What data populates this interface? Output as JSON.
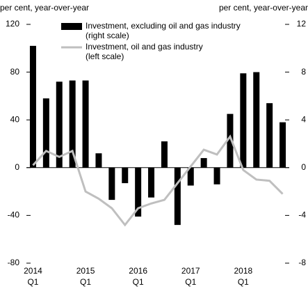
{
  "chart_data": {
    "type": "bar_line",
    "y_axis_title": "per cent, year-over-year",
    "y2_axis_title": "per cent, year-over-year",
    "categories": [
      [
        "2014",
        "Q1"
      ],
      null,
      null,
      null,
      [
        "2015",
        "Q1"
      ],
      null,
      null,
      null,
      [
        "2016",
        "Q1"
      ],
      null,
      null,
      null,
      [
        "2017",
        "Q1"
      ],
      null,
      null,
      null,
      [
        "2018",
        "Q1"
      ],
      null,
      null,
      null
    ],
    "ylim": [
      -80,
      120
    ],
    "yticks": [
      -80,
      -40,
      0,
      40,
      80,
      120
    ],
    "y2lim": [
      -8,
      12
    ],
    "y2ticks": [
      -8,
      -4,
      0,
      4,
      8,
      12
    ],
    "series": [
      {
        "name": "Investment, excluding oil and gas industry",
        "legend_note": "(right scale)",
        "type": "bar",
        "axis": "y2",
        "color": "#000000",
        "values": [
          10.2,
          5.8,
          7.2,
          7.3,
          7.3,
          1.2,
          -2.7,
          -1.3,
          -4.1,
          -2.5,
          2.2,
          -4.8,
          -1.5,
          0.8,
          -1.4,
          4.5,
          7.9,
          8.0,
          5.4,
          3.8
        ]
      },
      {
        "name": "Investment, oil and gas industry",
        "legend_note": "(left scale)",
        "type": "line",
        "axis": "y",
        "color": "#bfbfbf",
        "values": [
          2,
          14,
          9,
          14,
          -20,
          -26,
          -34,
          -48,
          -34,
          -30,
          -27,
          -13,
          1,
          15,
          11,
          26,
          -2,
          -10,
          -11,
          -22
        ]
      }
    ]
  }
}
